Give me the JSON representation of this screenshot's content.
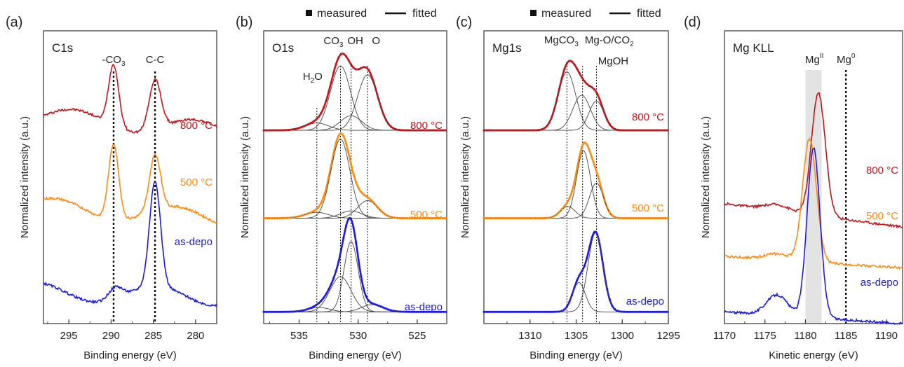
{
  "chart_data": [
    {
      "panel": "(a)",
      "type": "line",
      "title": "C1s",
      "xlabel": "Binding energy (eV)",
      "ylabel": "Normalized intensity (a.u.)",
      "xlim": [
        298,
        277.5
      ],
      "x_ticks": [
        295,
        290,
        285,
        280
      ],
      "reversed_x": true,
      "grid": false,
      "reference_lines": [
        {
          "x": 289.7,
          "label": "-CO",
          "sub": "3"
        },
        {
          "x": 284.8,
          "label": "C-C",
          "sub": ""
        }
      ],
      "series": [
        {
          "name": "800 °C",
          "color": "#c0161c",
          "base": 0.66,
          "baseline_slope": 0.05,
          "peaks": [
            {
              "c": 289.7,
              "w": 0.6,
              "h": 0.21
            },
            {
              "c": 284.8,
              "w": 0.7,
              "h": 0.17
            }
          ]
        },
        {
          "name": "500 °C",
          "color": "#ff8a14",
          "base": 0.36,
          "baseline_slope": 0.04,
          "peaks": [
            {
              "c": 289.7,
              "w": 0.6,
              "h": 0.26
            },
            {
              "c": 284.8,
              "w": 0.65,
              "h": 0.19
            }
          ]
        },
        {
          "name": "as-depo",
          "color": "#1a1ae6",
          "base": 0.09,
          "baseline_slope": 0.02,
          "peaks": [
            {
              "c": 289.5,
              "w": 0.8,
              "h": 0.04
            },
            {
              "c": 284.8,
              "w": 0.65,
              "h": 0.36
            }
          ]
        }
      ]
    },
    {
      "panel": "(b)",
      "type": "line",
      "title": "O1s",
      "xlabel": "Binding energy (eV)",
      "ylabel": "Normalized intensity (a.u.)",
      "xlim": [
        538,
        522.5
      ],
      "x_ticks": [
        535,
        530,
        525
      ],
      "reversed_x": true,
      "grid": false,
      "legend": {
        "measured": "measured",
        "fitted": "fitted",
        "placement": "top"
      },
      "reference_lines": [
        {
          "x": 533.5,
          "label": "H",
          "sub": "2",
          "suffix": "O"
        },
        {
          "x": 531.5,
          "label": "CO",
          "sub": "3",
          "suffix": ""
        },
        {
          "x": 530.6,
          "label": "OH",
          "sub": "",
          "suffix": ""
        },
        {
          "x": 529.2,
          "label": "O",
          "sub": "",
          "suffix": ""
        }
      ],
      "series": [
        {
          "name": "800 °C",
          "color": "#c0161c",
          "base": 0.66,
          "peaks": [
            {
              "c": 531.5,
              "w": 0.85,
              "h": 0.22
            },
            {
              "c": 530.6,
              "w": 0.9,
              "h": 0.05
            },
            {
              "c": 529.2,
              "w": 0.85,
              "h": 0.19
            },
            {
              "c": 533.5,
              "w": 1.0,
              "h": 0.025
            }
          ]
        },
        {
          "name": "500 °C",
          "color": "#ff8a14",
          "base": 0.36,
          "peaks": [
            {
              "c": 531.5,
              "w": 0.8,
              "h": 0.27
            },
            {
              "c": 530.6,
              "w": 0.9,
              "h": 0.025
            },
            {
              "c": 529.2,
              "w": 0.85,
              "h": 0.06
            },
            {
              "c": 533.5,
              "w": 1.0,
              "h": 0.02
            }
          ]
        },
        {
          "name": "as-depo",
          "color": "#1a1ae6",
          "base": 0.04,
          "peaks": [
            {
              "c": 531.5,
              "w": 0.9,
              "h": 0.12
            },
            {
              "c": 530.6,
              "w": 0.6,
              "h": 0.24
            },
            {
              "c": 528.8,
              "w": 0.9,
              "h": 0.025
            },
            {
              "c": 533.3,
              "w": 0.9,
              "h": 0.015
            }
          ]
        }
      ],
      "series_labels": [
        "800 °C",
        "500 °C",
        "as-depo"
      ]
    },
    {
      "panel": "(c)",
      "type": "line",
      "title": "Mg1s",
      "xlabel": "Binding energy (eV)",
      "ylabel": "Normalized intensity (a.u.)",
      "xlim": [
        1315,
        1295
      ],
      "x_ticks": [
        1310,
        1305,
        1300,
        1295
      ],
      "reversed_x": true,
      "grid": false,
      "legend": {
        "measured": "measured",
        "fitted": "fitted",
        "placement": "top"
      },
      "reference_lines": [
        {
          "x": 1306.0,
          "label": "MgCO",
          "sub": "3",
          "suffix": ""
        },
        {
          "x": 1304.3,
          "label": "Mg-O/CO",
          "sub": "2",
          "suffix": ""
        },
        {
          "x": 1302.8,
          "label": "MgOH",
          "sub": "",
          "suffix": ""
        }
      ],
      "series": [
        {
          "name": "800 °C",
          "color": "#c0161c",
          "base": 0.66,
          "peaks": [
            {
              "c": 1306.0,
              "w": 0.95,
              "h": 0.2
            },
            {
              "c": 1304.4,
              "w": 0.95,
              "h": 0.12
            },
            {
              "c": 1302.8,
              "w": 0.8,
              "h": 0.1
            }
          ]
        },
        {
          "name": "500 °C",
          "color": "#ff8a14",
          "base": 0.36,
          "peaks": [
            {
              "c": 1305.9,
              "w": 0.8,
              "h": 0.04
            },
            {
              "c": 1304.2,
              "w": 0.75,
              "h": 0.23
            },
            {
              "c": 1302.8,
              "w": 0.75,
              "h": 0.12
            }
          ]
        },
        {
          "name": "as-depo",
          "color": "#1a1ae6",
          "base": 0.04,
          "peaks": [
            {
              "c": 1304.7,
              "w": 0.7,
              "h": 0.1
            },
            {
              "c": 1302.9,
              "w": 0.8,
              "h": 0.27
            }
          ]
        }
      ],
      "series_labels": [
        "800 °C",
        "500 °C",
        "as-depo"
      ]
    },
    {
      "panel": "(d)",
      "type": "line",
      "title": "Mg KLL",
      "xlabel": "Kinetic energy (eV)",
      "ylabel": "Normalized intensity (a.u.)",
      "xlim": [
        1170,
        1192
      ],
      "x_ticks": [
        1170,
        1175,
        1180,
        1185,
        1190
      ],
      "reversed_x": false,
      "grid": false,
      "shaded_region": {
        "x": [
          1180,
          1182
        ],
        "label": "Mg",
        "sup": "II"
      },
      "reference_lines": [
        {
          "x": 1185,
          "label": "Mg",
          "sup": "0"
        }
      ],
      "series": [
        {
          "name": "800 °C",
          "color": "#c0161c",
          "base": 0.41,
          "tail": -0.08,
          "peaks": [
            {
              "c": 1181.6,
              "w": 0.85,
              "h": 0.42
            },
            {
              "c": 1176.5,
              "w": 1.5,
              "h": 0.02
            }
          ]
        },
        {
          "name": "500 °C",
          "color": "#ff8a14",
          "base": 0.23,
          "tail": -0.04,
          "peaks": [
            {
              "c": 1180.5,
              "w": 0.85,
              "h": 0.42
            },
            {
              "c": 1176.5,
              "w": 1.5,
              "h": 0.02
            }
          ]
        },
        {
          "name": "as-depo",
          "color": "#1a1ae6",
          "base": 0.04,
          "tail": -0.04,
          "peaks": [
            {
              "c": 1181.0,
              "w": 0.8,
              "h": 0.58
            },
            {
              "c": 1176.5,
              "w": 1.3,
              "h": 0.07
            }
          ]
        }
      ]
    }
  ]
}
